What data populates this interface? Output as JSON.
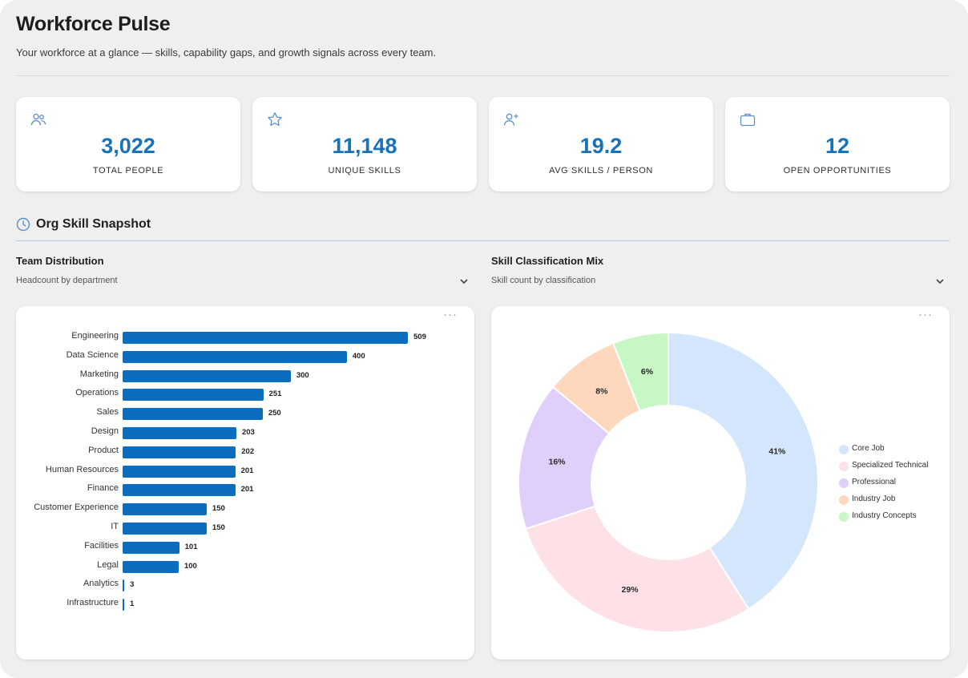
{
  "header": {
    "title": "Workforce Pulse",
    "subtitle": "Your workforce at a glance — skills, capability gaps, and growth signals across every team."
  },
  "kpis": [
    {
      "icon": "people-icon",
      "value": "3,022",
      "label": "TOTAL PEOPLE"
    },
    {
      "icon": "star-icon",
      "value": "11,148",
      "label": "UNIQUE SKILLS"
    },
    {
      "icon": "person-add-icon",
      "value": "19.2",
      "label": "AVG SKILLS / PERSON"
    },
    {
      "icon": "briefcase-icon",
      "value": "12",
      "label": "OPEN OPPORTUNITIES"
    }
  ],
  "section": {
    "icon": "clock-icon",
    "title": "Org Skill Snapshot"
  },
  "panels": {
    "left": {
      "title": "Team Distribution",
      "subtitle": "Headcount by department",
      "more": "···"
    },
    "right": {
      "title": "Skill Classification Mix",
      "subtitle": "Skill count by classification",
      "more": "···"
    }
  },
  "chart_data": [
    {
      "type": "bar",
      "orientation": "horizontal",
      "categories": [
        "Engineering",
        "Data Science",
        "Marketing",
        "Operations",
        "Sales",
        "Design",
        "Product",
        "Human Resources",
        "Finance",
        "Customer Experience",
        "IT",
        "Facilities",
        "Legal",
        "Analytics",
        "Infrastructure"
      ],
      "values": [
        509,
        400,
        300,
        251,
        250,
        203,
        202,
        201,
        201,
        150,
        150,
        101,
        100,
        3,
        1
      ],
      "color": "#0b6dc0",
      "grid": false
    },
    {
      "type": "pie",
      "donut": true,
      "labels": [
        "Core Job",
        "Specialized Technical",
        "Professional",
        "Industry Job",
        "Industry Concepts"
      ],
      "values": [
        41,
        29,
        16,
        8,
        6
      ],
      "value_labels": [
        "41%",
        "29%",
        "16%",
        "8%",
        "6%"
      ],
      "colors": [
        "#d3e6fc",
        "#fde1e7",
        "#e1cffb",
        "#fdd8bd",
        "#c6f7c4"
      ],
      "legend": "right"
    }
  ]
}
